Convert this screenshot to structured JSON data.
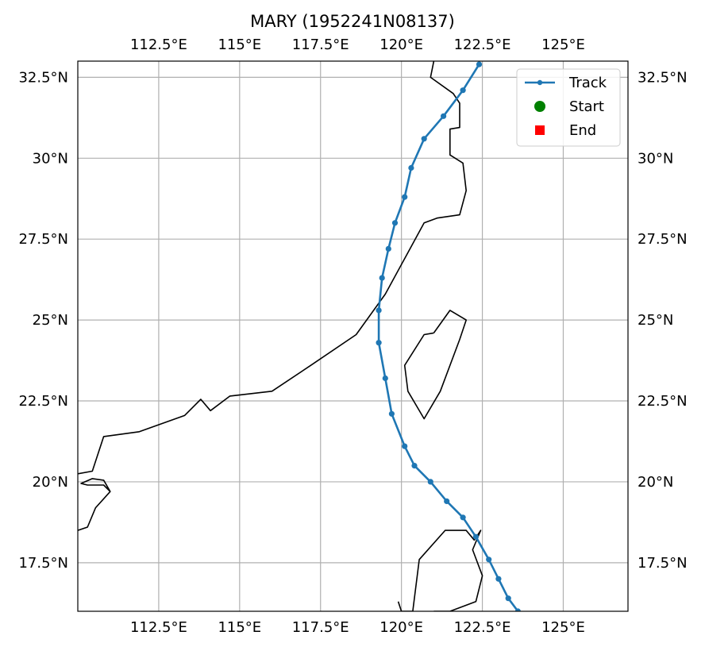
{
  "chart_data": {
    "type": "map-track",
    "title": "MARY (1952241N08137)",
    "xlim": [
      110,
      127
    ],
    "ylim": [
      16,
      33
    ],
    "x_ticks": [
      {
        "value": 112.5,
        "label": "112.5°E"
      },
      {
        "value": 115,
        "label": "115°E"
      },
      {
        "value": 117.5,
        "label": "117.5°E"
      },
      {
        "value": 120,
        "label": "120°E"
      },
      {
        "value": 122.5,
        "label": "122.5°E"
      },
      {
        "value": 125,
        "label": "125°E"
      }
    ],
    "y_ticks": [
      {
        "value": 17.5,
        "label": "17.5°N"
      },
      {
        "value": 20,
        "label": "20°N"
      },
      {
        "value": 22.5,
        "label": "22.5°N"
      },
      {
        "value": 25,
        "label": "25°N"
      },
      {
        "value": 27.5,
        "label": "27.5°N"
      },
      {
        "value": 30,
        "label": "30°N"
      },
      {
        "value": 32.5,
        "label": "32.5°N"
      }
    ],
    "grid": true,
    "legend_position": "top-right",
    "legend": [
      {
        "label": "Track",
        "marker": "line-dot",
        "color": "#1f77b4"
      },
      {
        "label": "Start",
        "marker": "circle",
        "color": "#008000"
      },
      {
        "label": "End",
        "marker": "square",
        "color": "#ff0000"
      }
    ],
    "track": {
      "name": "Track",
      "color": "#1f77b4",
      "lon": [
        123.6,
        123.3,
        123.0,
        122.7,
        122.3,
        121.9,
        121.4,
        120.9,
        120.4,
        120.1,
        119.7,
        119.5,
        119.3,
        119.3,
        119.4,
        119.6,
        119.8,
        120.1,
        120.3,
        120.7,
        121.3,
        121.9,
        122.4
      ],
      "lat": [
        16.0,
        16.4,
        17.0,
        17.6,
        18.3,
        18.9,
        19.4,
        20.0,
        20.5,
        21.1,
        22.1,
        23.2,
        24.3,
        25.3,
        26.3,
        27.2,
        28.0,
        28.8,
        29.7,
        30.6,
        31.3,
        32.1,
        32.9
      ]
    },
    "coastlines": [
      {
        "name": "mainland-china",
        "lon": [
          110.0,
          110.45,
          110.8,
          111.9,
          113.3,
          113.8,
          114.1,
          114.7,
          116.0,
          117.2,
          118.6,
          119.5,
          120.1,
          120.7,
          121.1,
          121.8,
          122.0,
          121.9,
          121.5,
          121.5,
          121.8,
          121.8,
          121.6,
          120.9,
          121.0
        ],
        "lat": [
          20.25,
          20.33,
          21.4,
          21.55,
          22.05,
          22.55,
          22.2,
          22.65,
          22.8,
          23.6,
          24.55,
          25.8,
          26.9,
          28.0,
          28.15,
          28.25,
          29.0,
          29.85,
          30.1,
          30.9,
          30.95,
          31.7,
          32.0,
          32.5,
          33.0
        ]
      },
      {
        "name": "hainan",
        "lon": [
          110.0,
          110.3,
          110.55,
          111.0,
          110.8,
          110.45,
          110.1,
          110.3,
          110.8,
          111.0
        ],
        "lat": [
          18.5,
          18.6,
          19.2,
          19.7,
          20.05,
          20.1,
          19.95,
          19.9,
          19.9,
          19.7
        ]
      },
      {
        "name": "taiwan",
        "lon": [
          121.0,
          121.5,
          122.0,
          121.8,
          121.2,
          120.7,
          120.2,
          120.1,
          120.7,
          121.0
        ],
        "lat": [
          24.6,
          25.3,
          25.0,
          24.4,
          22.8,
          21.95,
          22.8,
          23.6,
          24.55,
          24.6
        ]
      },
      {
        "name": "luzon",
        "lon": [
          120.35,
          120.55,
          121.35,
          122.0,
          122.25,
          122.45,
          122.2,
          122.5,
          122.3,
          121.5,
          121.0
        ],
        "lat": [
          16.0,
          17.6,
          18.5,
          18.5,
          18.2,
          18.5,
          17.9,
          17.1,
          16.3,
          16.0,
          16.0
        ]
      },
      {
        "name": "luzon-west-coast",
        "lon": [
          119.9,
          120.0,
          120.35
        ],
        "lat": [
          16.3,
          16.0,
          16.0
        ]
      }
    ]
  }
}
